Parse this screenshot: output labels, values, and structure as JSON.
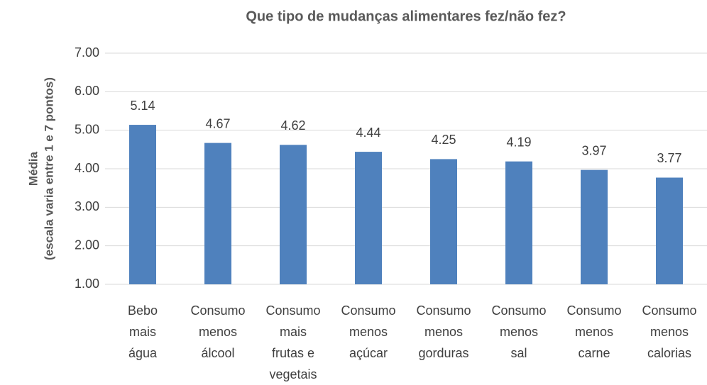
{
  "chart_data": {
    "type": "bar",
    "title": "Que tipo de mudanças alimentares fez/não fez?",
    "y_label": [
      "Média",
      "(escala varia entre 1 e 7 pontos)"
    ],
    "categories": [
      "Bebo mais água",
      "Consumo menos álcool",
      "Consumo mais frutas e vegetais",
      "Consumo menos açúcar",
      "Consumo menos gorduras",
      "Consumo menos sal",
      "Consumo menos carne",
      "Consumo menos calorias"
    ],
    "values": [
      5.14,
      4.67,
      4.62,
      4.44,
      4.25,
      4.19,
      3.97,
      3.77
    ],
    "color": "#4f81bd",
    "ylim": [
      1,
      7
    ],
    "yticks": [
      {
        "value": 1,
        "label": "1.00"
      },
      {
        "value": 2,
        "label": "2.00"
      },
      {
        "value": 3,
        "label": "3.00"
      },
      {
        "value": 4,
        "label": "4.00"
      },
      {
        "value": 5,
        "label": "5.00"
      },
      {
        "value": 6,
        "label": "6.00"
      },
      {
        "value": 7,
        "label": "7.00"
      }
    ],
    "grid": true
  }
}
